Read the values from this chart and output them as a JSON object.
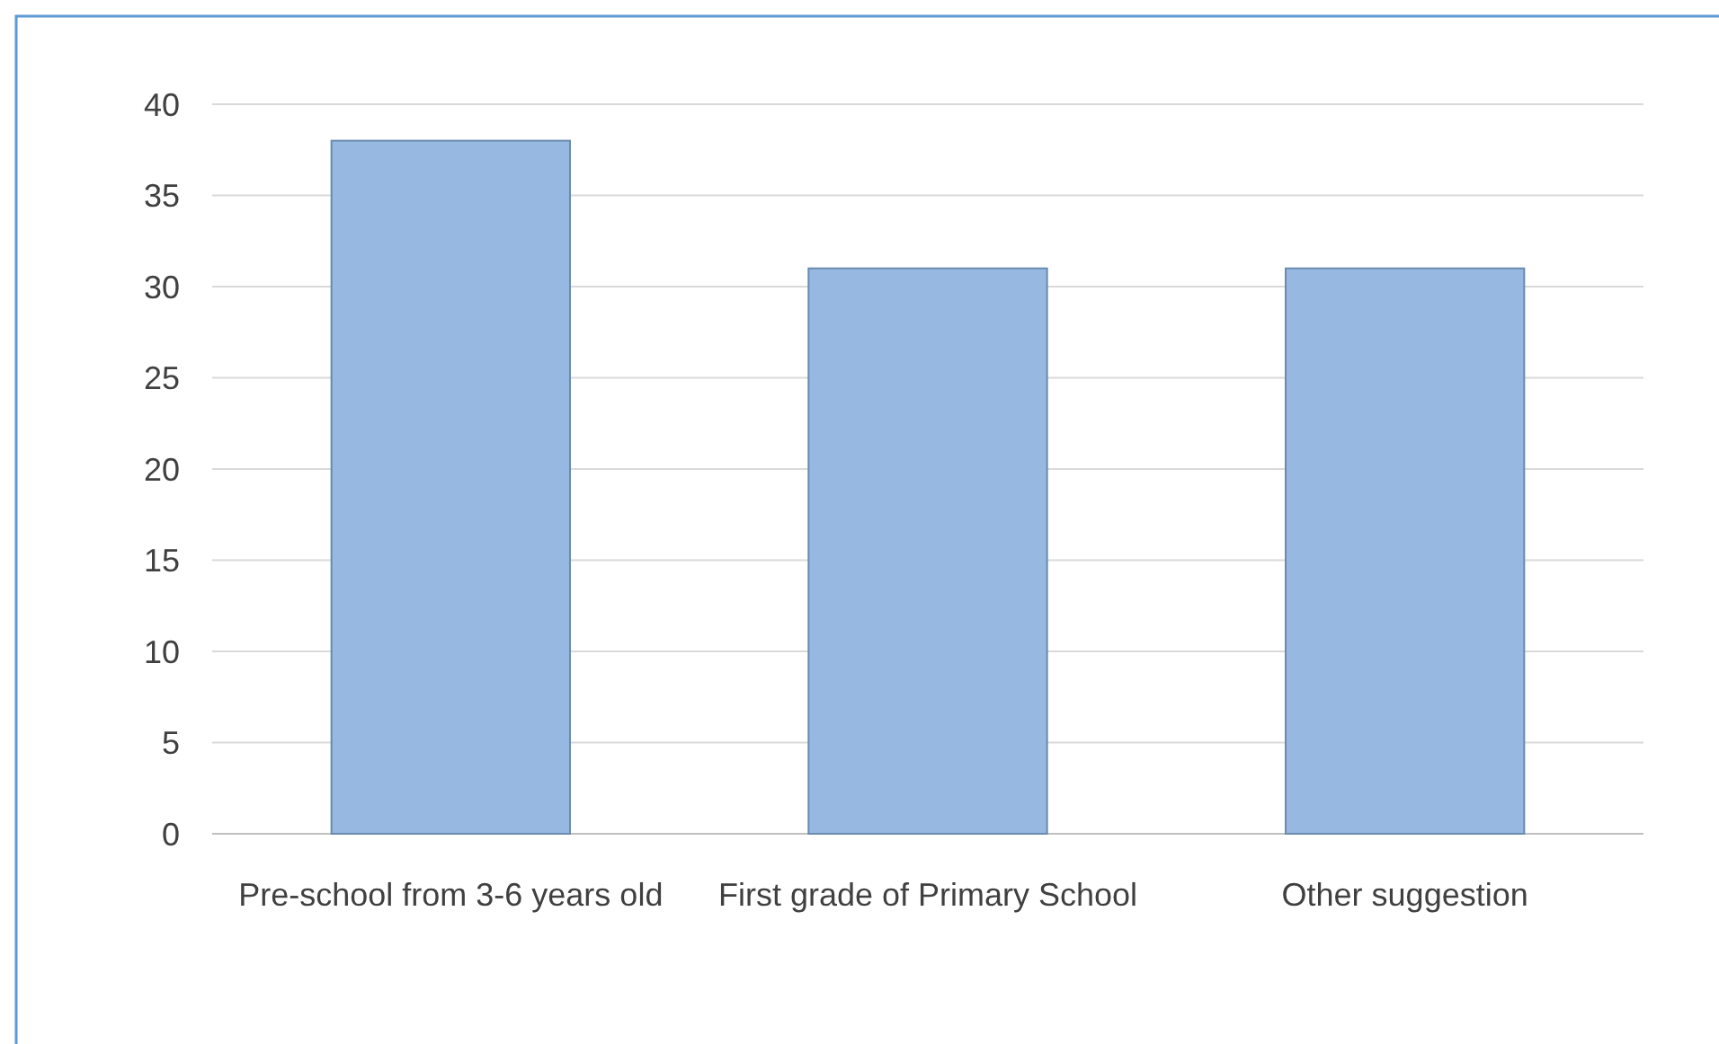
{
  "chart_data": {
    "type": "bar",
    "categories": [
      "Pre-school from 3-6 years old",
      "First grade of Primary School",
      "Other suggestion"
    ],
    "values": [
      38,
      31,
      31
    ],
    "color": "#97b8e0",
    "ylim": [
      0,
      40
    ],
    "yticks": [
      0,
      5,
      10,
      15,
      20,
      25,
      30,
      35,
      40
    ],
    "grid": "y"
  }
}
